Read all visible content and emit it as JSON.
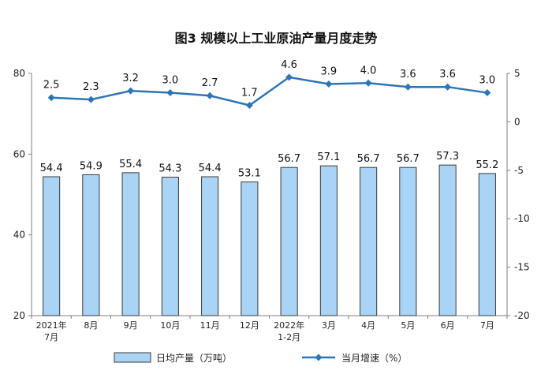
{
  "chart_data": {
    "type": "bar",
    "title": "图3  规模以上工业原油产量月度走势",
    "categories": [
      [
        "2021年",
        "7月"
      ],
      [
        "8月"
      ],
      [
        "9月"
      ],
      [
        "10月"
      ],
      [
        "11月"
      ],
      [
        "12月"
      ],
      [
        "2022年",
        "1-2月"
      ],
      [
        "3月"
      ],
      [
        "4月"
      ],
      [
        "5月"
      ],
      [
        "6月"
      ],
      [
        "7月"
      ]
    ],
    "y_left": {
      "range": [
        20,
        80
      ],
      "ticks": [
        "20",
        "40",
        "60",
        "80"
      ]
    },
    "y_right": {
      "range": [
        -20,
        5
      ],
      "ticks": [
        "-20",
        "-15",
        "-10",
        "-5",
        "0",
        "5"
      ]
    },
    "series": [
      {
        "name": "日均产量（万吨）",
        "type": "bar",
        "axis": "left",
        "color": "#a9d4f5",
        "values": [
          54.4,
          54.9,
          55.4,
          54.3,
          54.4,
          53.1,
          56.7,
          57.1,
          56.7,
          56.7,
          57.3,
          55.2
        ],
        "labels": [
          "54.4",
          "54.9",
          "55.4",
          "54.3",
          "54.4",
          "53.1",
          "56.7",
          "57.1",
          "56.7",
          "56.7",
          "57.3",
          "55.2"
        ]
      },
      {
        "name": "当月增速（%）",
        "type": "line",
        "axis": "right",
        "color": "#2e75b6",
        "values": [
          2.5,
          2.3,
          3.2,
          3.0,
          2.7,
          1.7,
          4.6,
          3.9,
          4.0,
          3.6,
          3.6,
          3.0
        ],
        "labels": [
          "2.5",
          "2.3",
          "3.2",
          "3.0",
          "2.7",
          "1.7",
          "4.6",
          "3.9",
          "4.0",
          "3.6",
          "3.6",
          "3.0"
        ]
      }
    ],
    "legend_position": "bottom",
    "grid": false
  }
}
